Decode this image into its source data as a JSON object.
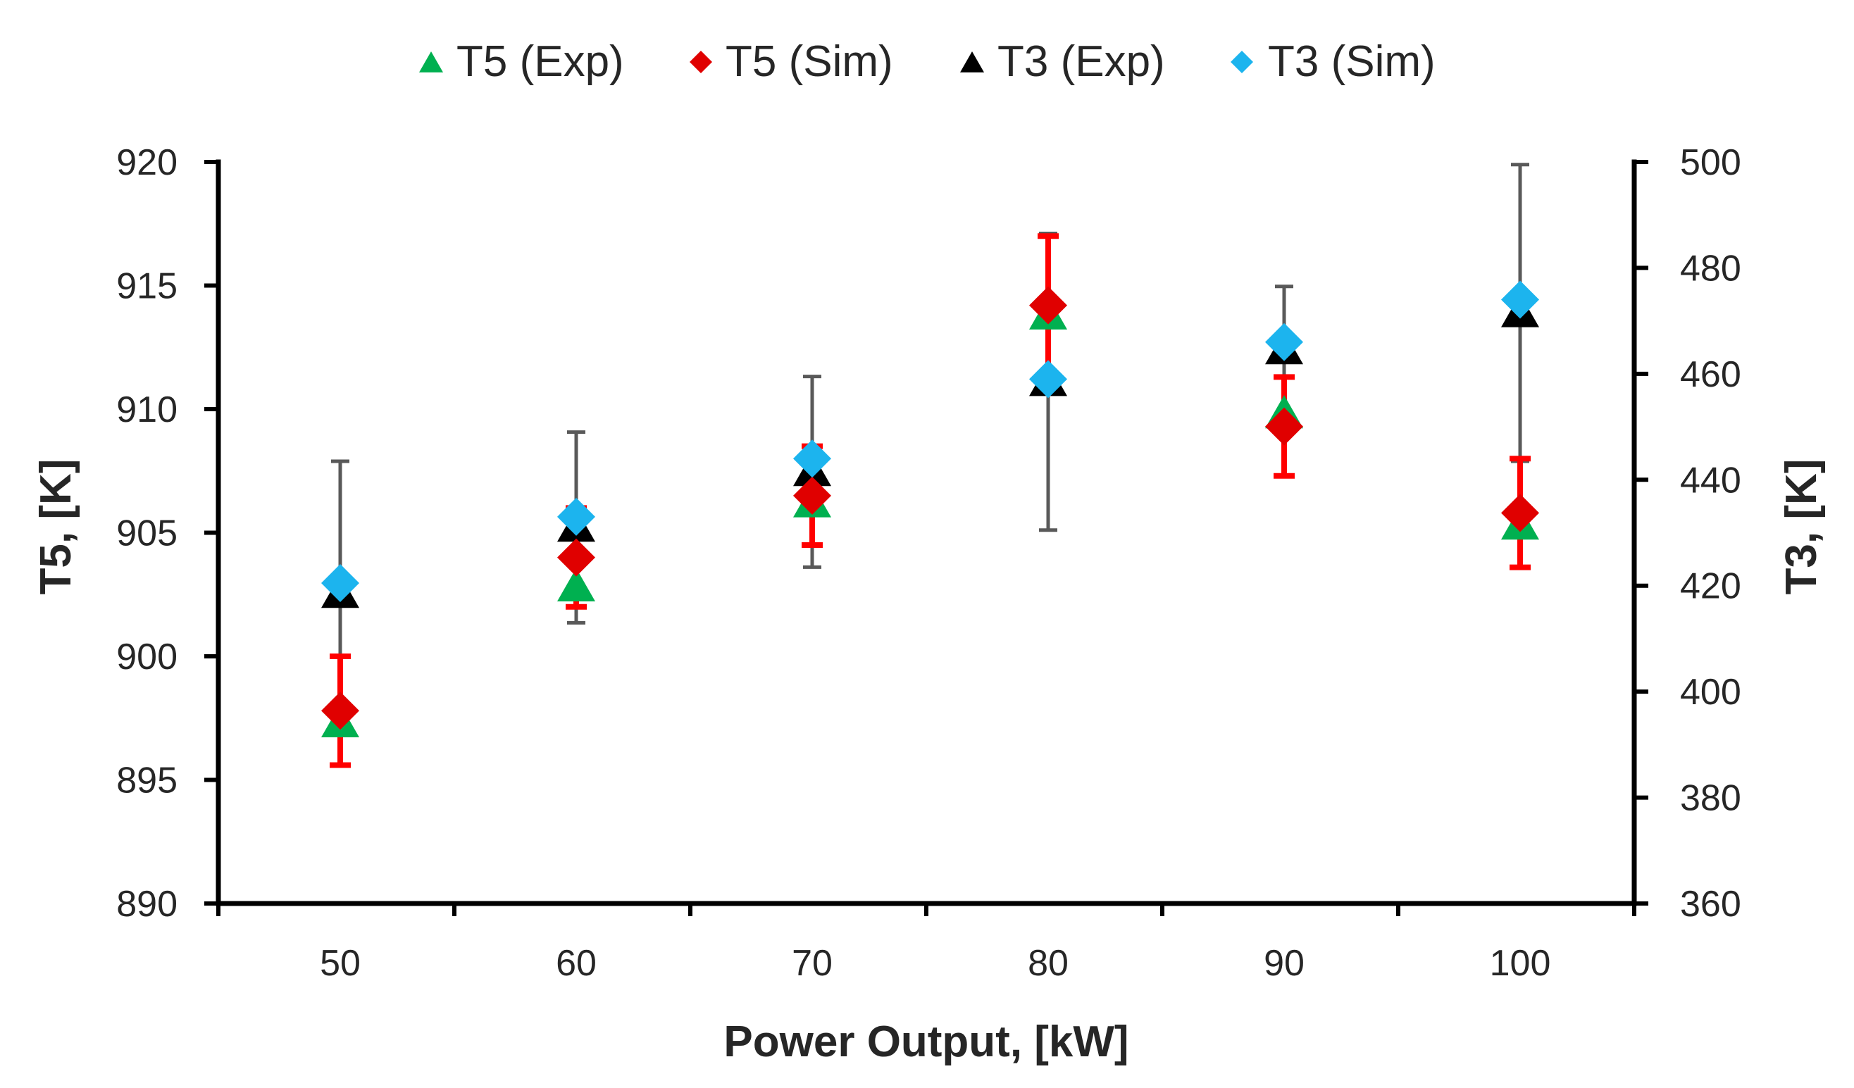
{
  "chart_data": {
    "type": "scatter",
    "xlabel": "Power Output, [kW]",
    "ylabel_left": "T5, [K]",
    "ylabel_right": "T3, [K]",
    "x": [
      50,
      60,
      70,
      80,
      90,
      100
    ],
    "x_ticks": [
      "50",
      "60",
      "70",
      "80",
      "90",
      "100"
    ],
    "y_left_range": [
      890,
      920
    ],
    "y_left_ticks": [
      "890",
      "895",
      "900",
      "905",
      "910",
      "915",
      "920"
    ],
    "y_right_range": [
      360,
      500
    ],
    "y_right_ticks": [
      "360",
      "380",
      "400",
      "420",
      "440",
      "460",
      "480",
      "500"
    ],
    "series": [
      {
        "key": "t5exp",
        "name": "T5 (Exp)",
        "axis": "left",
        "marker": "triangle",
        "color": "#00B050",
        "values": [
          897.3,
          902.8,
          906.2,
          913.8,
          909.8,
          905.3
        ],
        "error": null
      },
      {
        "key": "t5sim",
        "name": "T5 (Sim)",
        "axis": "left",
        "marker": "diamond",
        "color": "#E00000",
        "values": [
          897.8,
          904.0,
          906.5,
          914.2,
          909.3,
          905.8
        ],
        "error": [
          2.2,
          2.0,
          2.0,
          2.8,
          2.0,
          2.2
        ],
        "error_color": "#FF0000"
      },
      {
        "key": "t3exp",
        "name": "T3 (Exp)",
        "axis": "right",
        "marker": "triangle",
        "color": "#000000",
        "values": [
          418.5,
          431.0,
          441.5,
          458.5,
          464.5,
          471.5
        ],
        "error": [
          25,
          18,
          18,
          28,
          12,
          28
        ],
        "error_color": "#595959"
      },
      {
        "key": "t3sim",
        "name": "T3 (Sim)",
        "axis": "right",
        "marker": "diamond",
        "color": "#1CB4EE",
        "values": [
          420.5,
          433.0,
          444.0,
          459.0,
          466.0,
          474.0
        ],
        "error": null
      }
    ]
  }
}
